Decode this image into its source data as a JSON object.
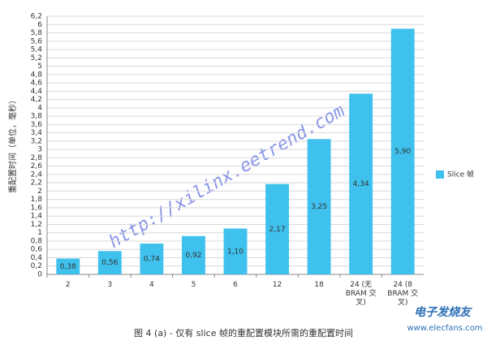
{
  "chart_data": {
    "type": "bar",
    "title": "图 4 (a) - 仅有 slice 帧的重配置模块所需的重配置时间",
    "y_label": "重配置时间（单位，毫秒）",
    "categories": [
      "2",
      "3",
      "4",
      "5",
      "6",
      "12",
      "18",
      "24 (无 BRAM 交叉)",
      "24 (8 BRAM 交叉)"
    ],
    "series": [
      {
        "name": "Slice 帧",
        "color": "#3fc1ee",
        "values": [
          0.38,
          0.56,
          0.74,
          0.92,
          1.1,
          2.17,
          3.25,
          4.34,
          5.9
        ],
        "value_labels": [
          "0,38",
          "0,56",
          "0,74",
          "0,92",
          "1,10",
          "2,17",
          "3,25",
          "4,34",
          "5,90"
        ]
      }
    ],
    "ylim": [
      0,
      6.2
    ],
    "yticks": [
      0,
      {
        "value": 0.2,
        "label": "0,2"
      },
      {
        "value": 0.4,
        "label": "0,4"
      },
      {
        "value": 0.6,
        "label": "0,6"
      },
      {
        "value": 0.8,
        "label": "0,8"
      },
      1,
      {
        "value": 1.2,
        "label": "1,2"
      },
      {
        "value": 1.4,
        "label": "1,4"
      },
      {
        "value": 1.6,
        "label": "1,6"
      },
      {
        "value": 1.8,
        "label": "1,8"
      },
      2,
      {
        "value": 2.2,
        "label": "2,2"
      },
      {
        "value": 2.4,
        "label": "2,4"
      },
      {
        "value": 2.6,
        "label": "2,6"
      },
      {
        "value": 2.8,
        "label": "2,8"
      },
      3,
      {
        "value": 3.2,
        "label": "3,2"
      },
      {
        "value": 3.4,
        "label": "3,4"
      },
      {
        "value": 3.6,
        "label": "3,6"
      },
      {
        "value": 3.8,
        "label": "3,8"
      },
      4,
      {
        "value": 4.2,
        "label": "4,2"
      },
      {
        "value": 4.4,
        "label": "4,4"
      },
      {
        "value": 4.6,
        "label": "4,6"
      },
      {
        "value": 4.8,
        "label": "4,8"
      },
      5,
      {
        "value": 5.2,
        "label": "5,2"
      },
      {
        "value": 5.4,
        "label": "5,4"
      },
      {
        "value": 5.6,
        "label": "5,6"
      },
      {
        "value": 5.8,
        "label": "5,8"
      },
      6,
      {
        "value": 6.2,
        "label": "6,2"
      }
    ],
    "grid": true,
    "legend": "right",
    "watermarks": [
      "http://xilinx.eetrend.com",
      "电子发烧友",
      "www.elecfans.com"
    ]
  }
}
